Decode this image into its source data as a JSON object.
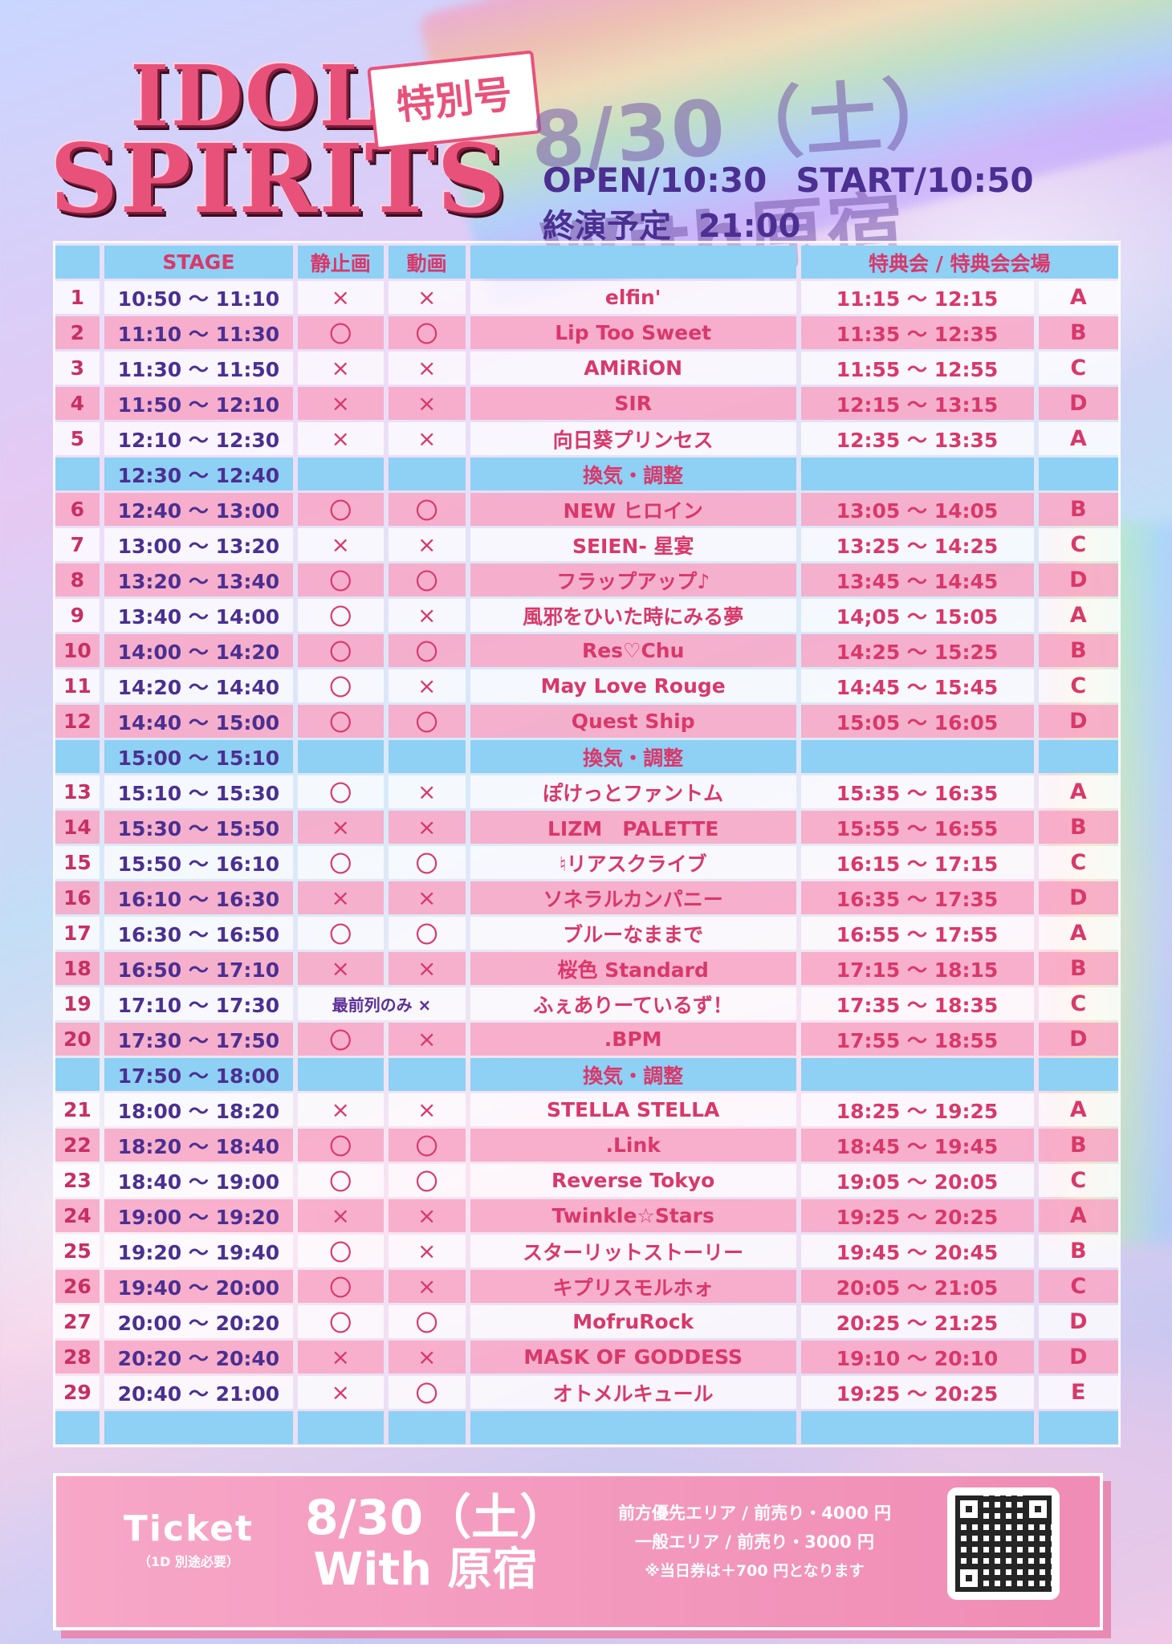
{
  "logo": {
    "line1": "IDOL",
    "line2": "SPIRITS",
    "special": "特別号"
  },
  "event": {
    "title": "8/30（土）With原宿"
  },
  "times": {
    "open": "OPEN/10:30",
    "start": "START/10:50",
    "end_label": "終演予定",
    "end_time": "21:00"
  },
  "table": {
    "headers": {
      "stage": "STAGE",
      "photo": "静止画",
      "video": "動画",
      "session": "特典会 / 特典会会場"
    },
    "rows": [
      {
        "type": "act",
        "no": "1",
        "stage": "10:50 〜 11:10",
        "photo": "×",
        "video": "×",
        "name": "elfin'",
        "session": "11:15 〜 12:15",
        "venue": "A"
      },
      {
        "type": "act",
        "no": "2",
        "stage": "11:10 〜 11:30",
        "photo": "〇",
        "video": "〇",
        "name": "Lip Too Sweet",
        "session": "11:35 〜 12:35",
        "venue": "B"
      },
      {
        "type": "act",
        "no": "3",
        "stage": "11:30 〜 11:50",
        "photo": "×",
        "video": "×",
        "name": "AMiRiON",
        "session": "11:55 〜 12:55",
        "venue": "C"
      },
      {
        "type": "act",
        "no": "4",
        "stage": "11:50 〜 12:10",
        "photo": "×",
        "video": "×",
        "name": "SIR",
        "session": "12:15 〜 13:15",
        "venue": "D"
      },
      {
        "type": "act",
        "no": "5",
        "stage": "12:10 〜 12:30",
        "photo": "×",
        "video": "×",
        "name": "向日葵プリンセス",
        "session": "12:35 〜 13:35",
        "venue": "A"
      },
      {
        "type": "break",
        "stage": "12:30 〜 12:40",
        "name": "換気・調整"
      },
      {
        "type": "act",
        "no": "6",
        "stage": "12:40 〜 13:00",
        "photo": "〇",
        "video": "〇",
        "name": "NEW ヒロイン",
        "session": "13:05 〜 14:05",
        "venue": "B"
      },
      {
        "type": "act",
        "no": "7",
        "stage": "13:00 〜 13:20",
        "photo": "×",
        "video": "×",
        "name": "SEIEN- 星宴",
        "session": "13:25 〜 14:25",
        "venue": "C"
      },
      {
        "type": "act",
        "no": "8",
        "stage": "13:20 〜 13:40",
        "photo": "〇",
        "video": "〇",
        "name": "フラップアップ♪",
        "session": "13:45 〜 14:45",
        "venue": "D"
      },
      {
        "type": "act",
        "no": "9",
        "stage": "13:40 〜 14:00",
        "photo": "〇",
        "video": "×",
        "name": "風邪をひいた時にみる夢",
        "session": "14;05 〜 15:05",
        "venue": "A"
      },
      {
        "type": "act",
        "no": "10",
        "stage": "14:00 〜 14:20",
        "photo": "〇",
        "video": "〇",
        "name": "Res♡Chu",
        "session": "14:25 〜 15:25",
        "venue": "B"
      },
      {
        "type": "act",
        "no": "11",
        "stage": "14:20 〜 14:40",
        "photo": "〇",
        "video": "×",
        "name": "May Love Rouge",
        "session": "14:45 〜 15:45",
        "venue": "C"
      },
      {
        "type": "act",
        "no": "12",
        "stage": "14:40 〜 15:00",
        "photo": "〇",
        "video": "〇",
        "name": "Quest Ship",
        "session": "15:05 〜 16:05",
        "venue": "D"
      },
      {
        "type": "break",
        "stage": "15:00 〜 15:10",
        "name": "換気・調整"
      },
      {
        "type": "act",
        "no": "13",
        "stage": "15:10 〜 15:30",
        "photo": "〇",
        "video": "×",
        "name": "ぽけっとファントム",
        "session": "15:35 〜 16:35",
        "venue": "A"
      },
      {
        "type": "act",
        "no": "14",
        "stage": "15:30 〜 15:50",
        "photo": "×",
        "video": "×",
        "name": "LIZM　PALETTE",
        "session": "15:55 〜 16:55",
        "venue": "B"
      },
      {
        "type": "act",
        "no": "15",
        "stage": "15:50 〜 16:10",
        "photo": "〇",
        "video": "〇",
        "name": "♮リアスクライブ",
        "session": "16:15 〜 17:15",
        "venue": "C"
      },
      {
        "type": "act",
        "no": "16",
        "stage": "16:10 〜 16:30",
        "photo": "×",
        "video": "×",
        "name": "ソネラルカンパニー",
        "session": "16:35 〜 17:35",
        "venue": "D"
      },
      {
        "type": "act",
        "no": "17",
        "stage": "16:30 〜 16:50",
        "photo": "〇",
        "video": "〇",
        "name": "ブルーなままで",
        "session": "16:55 〜 17:55",
        "venue": "A"
      },
      {
        "type": "act",
        "no": "18",
        "stage": "16:50 〜 17:10",
        "photo": "×",
        "video": "×",
        "name": "桜色 Standard",
        "session": "17:15 〜 18:15",
        "venue": "B"
      },
      {
        "type": "act",
        "no": "19",
        "stage": "17:10 〜 17:30",
        "note": "最前列のみ ×",
        "name": "ふぇありーているず！",
        "session": "17:35 〜 18:35",
        "venue": "C"
      },
      {
        "type": "act",
        "no": "20",
        "stage": "17:30 〜 17:50",
        "photo": "〇",
        "video": "×",
        "name": ".BPM",
        "session": "17:55 〜 18:55",
        "venue": "D"
      },
      {
        "type": "break",
        "stage": "17:50 〜 18:00",
        "name": "換気・調整"
      },
      {
        "type": "act",
        "no": "21",
        "stage": "18:00 〜 18:20",
        "photo": "×",
        "video": "×",
        "name": "STELLA STELLA",
        "session": "18:25 〜 19:25",
        "venue": "A"
      },
      {
        "type": "act",
        "no": "22",
        "stage": "18:20 〜 18:40",
        "photo": "〇",
        "video": "〇",
        "name": ".Link",
        "session": "18:45 〜 19:45",
        "venue": "B"
      },
      {
        "type": "act",
        "no": "23",
        "stage": "18:40 〜 19:00",
        "photo": "〇",
        "video": "〇",
        "name": "Reverse Tokyo",
        "session": "19:05 〜 20:05",
        "venue": "C"
      },
      {
        "type": "act",
        "no": "24",
        "stage": "19:00 〜 19:20",
        "photo": "×",
        "video": "×",
        "name": "Twinkle☆Stars",
        "session": "19:25 〜 20:25",
        "venue": "A"
      },
      {
        "type": "act",
        "no": "25",
        "stage": "19:20 〜 19:40",
        "photo": "〇",
        "video": "×",
        "name": "スターリットストーリー",
        "session": "19:45 〜 20:45",
        "venue": "B"
      },
      {
        "type": "act",
        "no": "26",
        "stage": "19:40 〜 20:00",
        "photo": "〇",
        "video": "×",
        "name": "キプリスモルホォ",
        "session": "20:05 〜 21:05",
        "venue": "C"
      },
      {
        "type": "act",
        "no": "27",
        "stage": "20:00 〜 20:20",
        "photo": "〇",
        "video": "〇",
        "name": "MofruRock",
        "session": "20:25 〜 21:25",
        "venue": "D"
      },
      {
        "type": "act",
        "no": "28",
        "stage": "20:20 〜 20:40",
        "photo": "×",
        "video": "×",
        "name": "MASK OF GODDESS",
        "session": "19:10 〜 20:10",
        "venue": "D"
      },
      {
        "type": "act",
        "no": "29",
        "stage": "20:40 〜 21:00",
        "photo": "×",
        "video": "〇",
        "name": "オトメルキュール",
        "session": "19:25 〜 20:25",
        "venue": "E"
      }
    ]
  },
  "ticket": {
    "label": "Ticket",
    "sublabel": "（1D 別途必要）",
    "date": "8/30（土）",
    "venue": "With 原宿",
    "price1": "前方優先エリア / 前売り・4000 円",
    "price2": "一般エリア / 前売り・3000 円",
    "note": "※当日券は＋700 円となります",
    "qr": "qr-code"
  },
  "colors": {
    "pink": "#d9386a",
    "purple": "#4b2f91",
    "blue_header": "#8fd0f5",
    "pink_row": "#f8a6c4"
  }
}
